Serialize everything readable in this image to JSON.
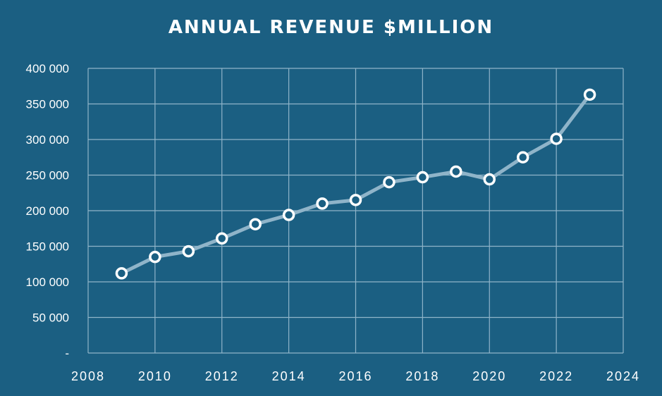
{
  "chart_data": {
    "type": "line",
    "title": "ANNUAL REVENUE $MILLION",
    "xlabel": "",
    "ylabel": "",
    "x": [
      2009,
      2010,
      2011,
      2012,
      2013,
      2014,
      2015,
      2016,
      2017,
      2018,
      2019,
      2020,
      2021,
      2022,
      2023
    ],
    "series": [
      {
        "name": "Annual Revenue",
        "values": [
          112000,
          135000,
          143000,
          161000,
          181000,
          194000,
          210000,
          215000,
          240000,
          247000,
          255000,
          244000,
          275000,
          301000,
          363000
        ]
      }
    ],
    "xlim": [
      2008,
      2024
    ],
    "ylim": [
      0,
      400000
    ],
    "x_ticks": [
      2008,
      2010,
      2012,
      2014,
      2016,
      2018,
      2020,
      2022,
      2024
    ],
    "x_tick_labels": [
      "2008",
      "2010",
      "2012",
      "2014",
      "2016",
      "2018",
      "2020",
      "2022",
      "2024"
    ],
    "y_ticks": [
      0,
      50000,
      100000,
      150000,
      200000,
      250000,
      300000,
      350000,
      400000
    ],
    "y_tick_labels": [
      "-",
      "50 000",
      "100 000",
      "150 000",
      "200 000",
      "250 000",
      "300 000",
      "350 000",
      "400 000"
    ],
    "grid": true,
    "legend": "none",
    "colors": {
      "background": "#1b5f82",
      "grid": "#8fb4c9",
      "line": "#8fb4c9",
      "marker_fill": "#1b5f82",
      "marker_stroke": "#ffffff",
      "text": "#ffffff"
    }
  }
}
